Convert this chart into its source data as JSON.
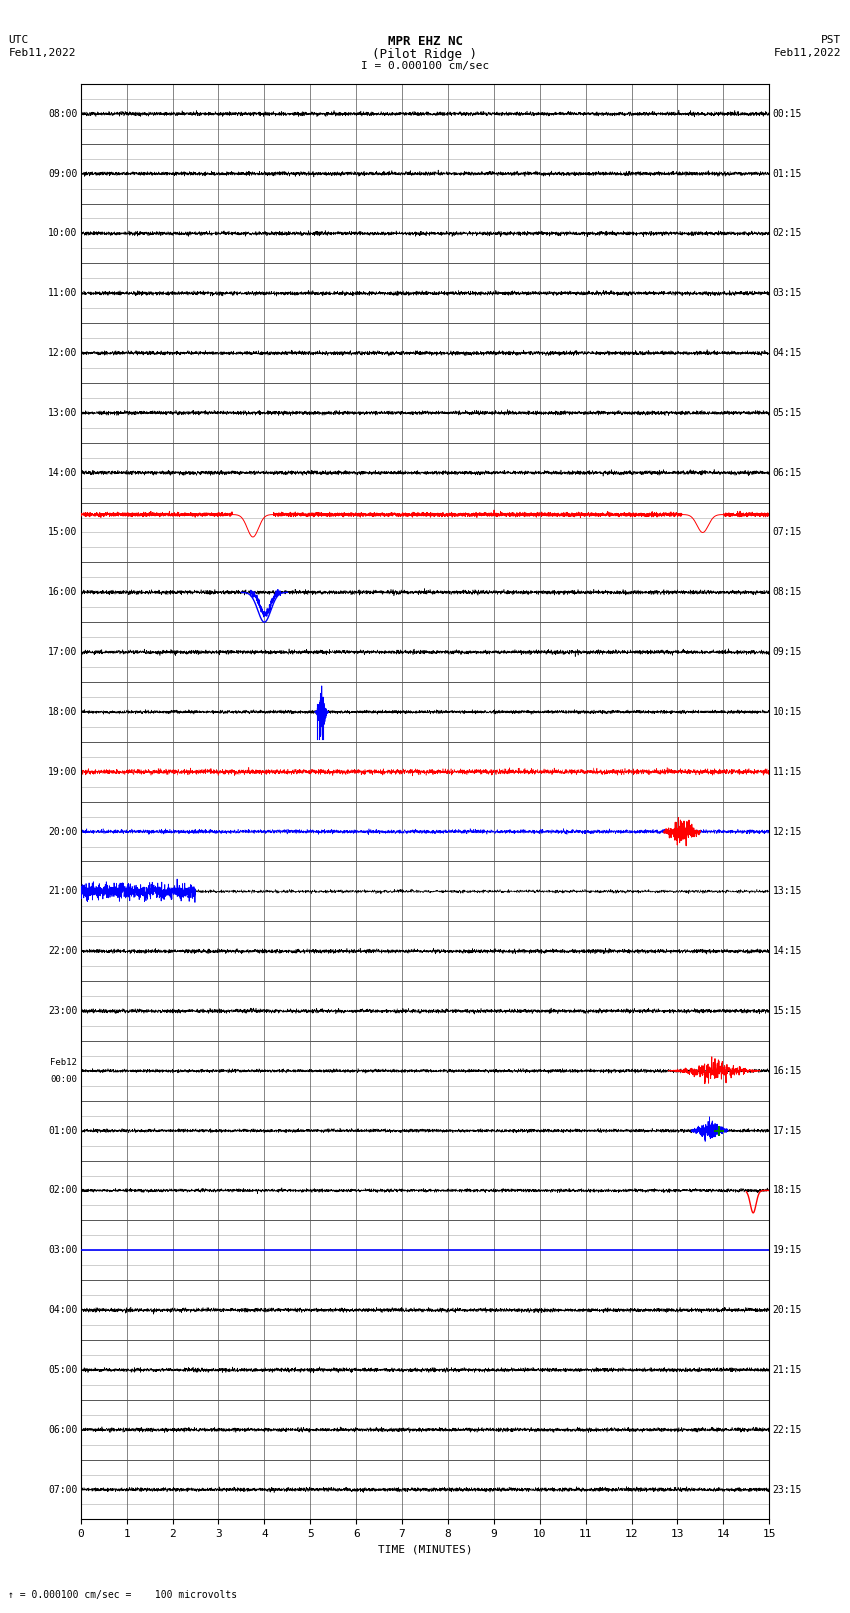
{
  "title_line1": "MPR EHZ NC",
  "title_line2": "(Pilot Ridge )",
  "title_line3": "I = 0.000100 cm/sec",
  "top_left_line1": "UTC",
  "top_left_line2": "Feb11,2022",
  "top_right_line1": "PST",
  "top_right_line2": "Feb11,2022",
  "bottom_note": "= 0.000100 cm/sec =    100 microvolts",
  "xlabel": "TIME (MINUTES)",
  "xlim": [
    0,
    15
  ],
  "xticks": [
    0,
    1,
    2,
    3,
    4,
    5,
    6,
    7,
    8,
    9,
    10,
    11,
    12,
    13,
    14,
    15
  ],
  "num_rows": 24,
  "sub_rows": 4,
  "utc_labels": [
    "08:00",
    "09:00",
    "10:00",
    "11:00",
    "12:00",
    "13:00",
    "14:00",
    "15:00",
    "16:00",
    "17:00",
    "18:00",
    "19:00",
    "20:00",
    "21:00",
    "22:00",
    "23:00",
    "Feb12\n00:00",
    "01:00",
    "02:00",
    "03:00",
    "04:00",
    "05:00",
    "06:00",
    "07:00"
  ],
  "pst_labels": [
    "00:15",
    "01:15",
    "02:15",
    "03:15",
    "04:15",
    "05:15",
    "06:15",
    "07:15",
    "08:15",
    "09:15",
    "10:15",
    "11:15",
    "12:15",
    "13:15",
    "14:15",
    "15:15",
    "16:15",
    "17:15",
    "18:15",
    "19:15",
    "20:15",
    "21:15",
    "22:15",
    "23:15"
  ],
  "background_color": "#ffffff",
  "major_grid_color": "#555555",
  "minor_grid_color": "#aaaaaa"
}
